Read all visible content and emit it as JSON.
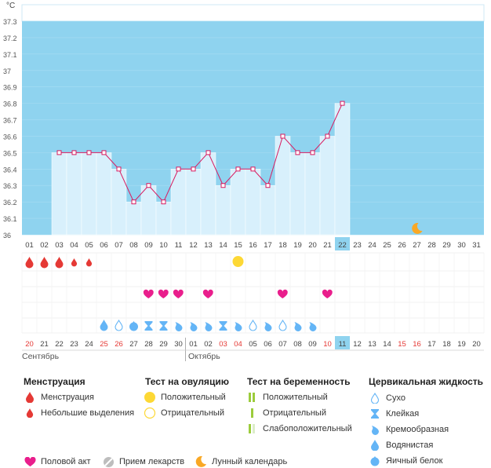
{
  "chart_data": {
    "type": "line",
    "ylabel": "°C",
    "ylim": [
      36.0,
      37.3
    ],
    "yticks": [
      "36",
      "36.1",
      "36.2",
      "36.3",
      "36.4",
      "36.5",
      "36.6",
      "36.7",
      "36.8",
      "36.9",
      "37",
      "37.1",
      "37.2",
      "37.3"
    ],
    "x_days": [
      "01",
      "02",
      "03",
      "04",
      "05",
      "06",
      "07",
      "08",
      "09",
      "10",
      "11",
      "12",
      "13",
      "14",
      "15",
      "16",
      "17",
      "18",
      "19",
      "20",
      "21",
      "22",
      "23",
      "24",
      "25",
      "26",
      "27",
      "28",
      "29",
      "30",
      "31"
    ],
    "x_highlight": "22",
    "series": [
      {
        "values": [
          null,
          null,
          36.5,
          36.5,
          36.5,
          36.5,
          36.4,
          36.2,
          36.3,
          36.2,
          36.4,
          36.4,
          36.5,
          36.3,
          36.4,
          36.4,
          36.3,
          36.6,
          36.5,
          36.5,
          36.6,
          36.8,
          null,
          null,
          null,
          null,
          null,
          null,
          null,
          null,
          null
        ]
      }
    ],
    "grid": true,
    "band_color": "#8fd3ef",
    "bar_color": "#d8f0fc",
    "line_color": "#d81b60",
    "moon_day": "27",
    "menstruation": [
      {
        "day": "01",
        "type": "full"
      },
      {
        "day": "02",
        "type": "full"
      },
      {
        "day": "03",
        "type": "full"
      },
      {
        "day": "04",
        "type": "light"
      },
      {
        "day": "05",
        "type": "light"
      }
    ],
    "ovulation": [
      {
        "day": "15",
        "type": "positive"
      }
    ],
    "intercourse": [
      "09",
      "10",
      "11",
      "13",
      "18",
      "21"
    ],
    "cervical": [
      {
        "day": "06",
        "type": "watery"
      },
      {
        "day": "07",
        "type": "dry"
      },
      {
        "day": "08",
        "type": "eggwhite"
      },
      {
        "day": "09",
        "type": "sticky"
      },
      {
        "day": "10",
        "type": "sticky"
      },
      {
        "day": "11",
        "type": "creamy"
      },
      {
        "day": "12",
        "type": "creamy"
      },
      {
        "day": "13",
        "type": "creamy"
      },
      {
        "day": "14",
        "type": "sticky"
      },
      {
        "day": "15",
        "type": "creamy"
      },
      {
        "day": "16",
        "type": "dry"
      },
      {
        "day": "17",
        "type": "creamy"
      },
      {
        "day": "18",
        "type": "dry"
      },
      {
        "day": "19",
        "type": "creamy"
      },
      {
        "day": "20",
        "type": "creamy"
      }
    ],
    "cycle_days": [
      "20",
      "21",
      "22",
      "23",
      "24",
      "25",
      "26",
      "27",
      "28",
      "29",
      "30",
      "01",
      "02",
      "03",
      "04",
      "05",
      "06",
      "07",
      "08",
      "09",
      "10",
      "11",
      "12",
      "13",
      "14",
      "15",
      "16",
      "17",
      "18",
      "19",
      "20"
    ],
    "cycle_red": [
      0,
      5,
      6,
      13,
      14,
      20,
      25,
      26
    ],
    "cycle_highlight": 21,
    "month_labels": [
      {
        "index": 0,
        "text": "Сентябрь"
      },
      {
        "index": 11,
        "text": "Октябрь"
      }
    ]
  },
  "legend": {
    "menstruation": {
      "title": "Менструация",
      "items": [
        "Менструация",
        "Небольшие выделения"
      ]
    },
    "ovulation_test": {
      "title": "Тест на овуляцию",
      "items": [
        "Положительный",
        "Отрицательный"
      ]
    },
    "pregnancy_test": {
      "title": "Тест на беременность",
      "items": [
        "Положительный",
        "Отрицательный",
        "Слабоположительный"
      ]
    },
    "cervical_fluid": {
      "title": "Цервикальная жидкость",
      "items": [
        "Сухо",
        "Клейкая",
        "Кремообразная",
        "Водянистая",
        "Яичный белок"
      ]
    },
    "bottom": [
      "Половой акт",
      "Прием лекарств",
      "Лунный календарь"
    ]
  },
  "colors": {
    "drop_red": "#e53935",
    "heart": "#e91e8c",
    "sun": "#fdd835",
    "drop_blue": "#64b5f6",
    "preg_green": "#9ccc3c",
    "moon": "#f9a825",
    "pill": "#9e9e9e"
  }
}
